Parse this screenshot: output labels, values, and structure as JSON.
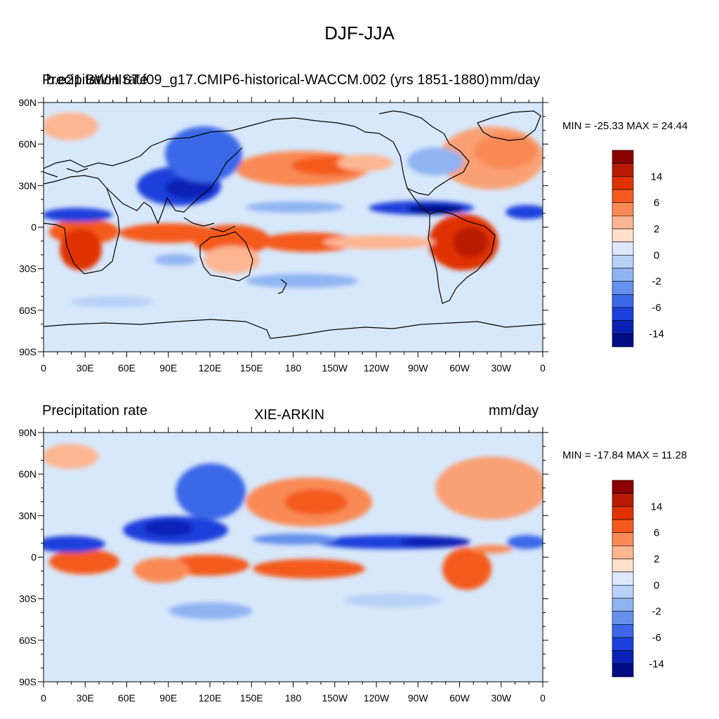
{
  "figure": {
    "title": "DJF-JJA"
  },
  "panels": [
    {
      "left_title": "Precipitation rate",
      "center_title": "b.e21.BWHIST.f09_g17.CMIP6-historical-WACCM.002 (yrs 1851-1880)",
      "right_title": "mm/day",
      "min_max": "MIN = -25.33 MAX =  24.44"
    },
    {
      "left_title": "Precipitation rate",
      "center_title": "XIE-ARKIN",
      "right_title": "mm/day",
      "min_max": "MIN = -17.84 MAX =  11.28"
    }
  ],
  "axes": {
    "lat_labels": [
      "90N",
      "60N",
      "30N",
      "0",
      "30S",
      "60S",
      "90S"
    ],
    "lon_labels": [
      "0",
      "30E",
      "60E",
      "90E",
      "120E",
      "150E",
      "180",
      "150W",
      "120W",
      "90W",
      "60W",
      "30W",
      "0"
    ]
  },
  "colorbar": {
    "labels": [
      "14",
      "6",
      "2",
      "0",
      "-2",
      "-6",
      "-14"
    ],
    "colors": [
      "#8b0000",
      "#b81a00",
      "#e03200",
      "#f45a1e",
      "#f98a55",
      "#fdb592",
      "#fee0cc",
      "#dde9fb",
      "#b8d1f7",
      "#90b3f2",
      "#6690ed",
      "#3b68e8",
      "#1d3fdb",
      "#0a22b5",
      "#000d86"
    ]
  },
  "colors": {
    "ocean_background": "#d8e8fb",
    "coastline": "#000000"
  }
}
